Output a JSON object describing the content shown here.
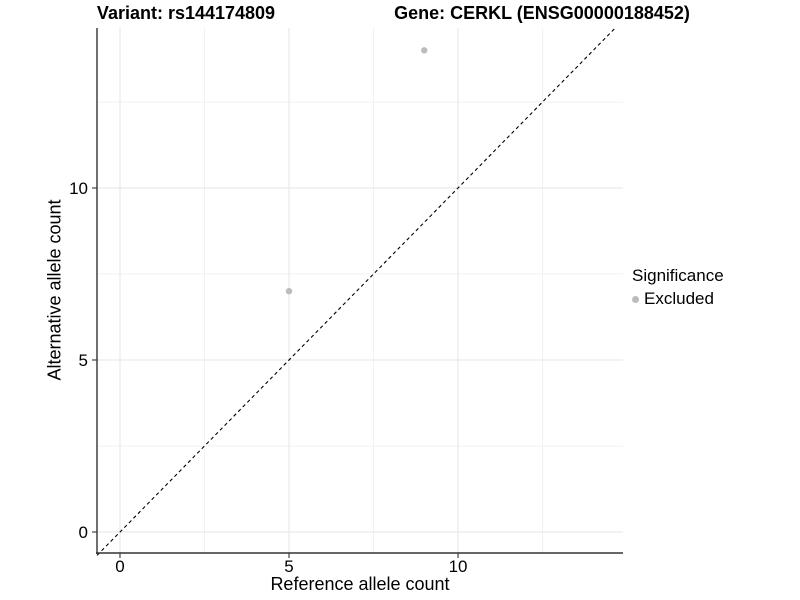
{
  "header": {
    "title_left": "Variant: rs144174809",
    "title_right": "Gene: CERKL (ENSG00000188452)"
  },
  "colors": {
    "excluded_point": "#bcbcbc",
    "axis_line": "#333333",
    "identity_line": "#000000",
    "major_grid": "#e6e6e6",
    "minor_grid": "#f1f1f1",
    "text": "#000000"
  },
  "chart_data": {
    "type": "scatter",
    "titles": [
      "Variant: rs144174809",
      "Gene: CERKL (ENSG00000188452)"
    ],
    "xlabel": "Reference allele count",
    "ylabel": "Alternative allele count",
    "xlim": [
      -0.68,
      14.88
    ],
    "ylim": [
      -0.61,
      14.65
    ],
    "xticks": [
      0,
      5,
      10
    ],
    "yticks": [
      0,
      5,
      10
    ],
    "minor_gridlines_x": [
      2.5,
      7.5,
      12.5
    ],
    "minor_gridlines_y": [
      2.5,
      7.5,
      12.5
    ],
    "grid": "major+minor",
    "identity_line": {
      "slope": 1,
      "intercept": 0,
      "style": "dashed",
      "color": "#000000"
    },
    "series": [
      {
        "name": "Excluded",
        "color": "#bcbcbc",
        "marker": "circle",
        "points": [
          {
            "x": 5,
            "y": 7
          },
          {
            "x": 9,
            "y": 14
          }
        ]
      }
    ],
    "legend": {
      "title": "Significance",
      "position": "right",
      "entries": [
        {
          "label": "Excluded",
          "color": "#bcbcbc"
        }
      ]
    }
  }
}
